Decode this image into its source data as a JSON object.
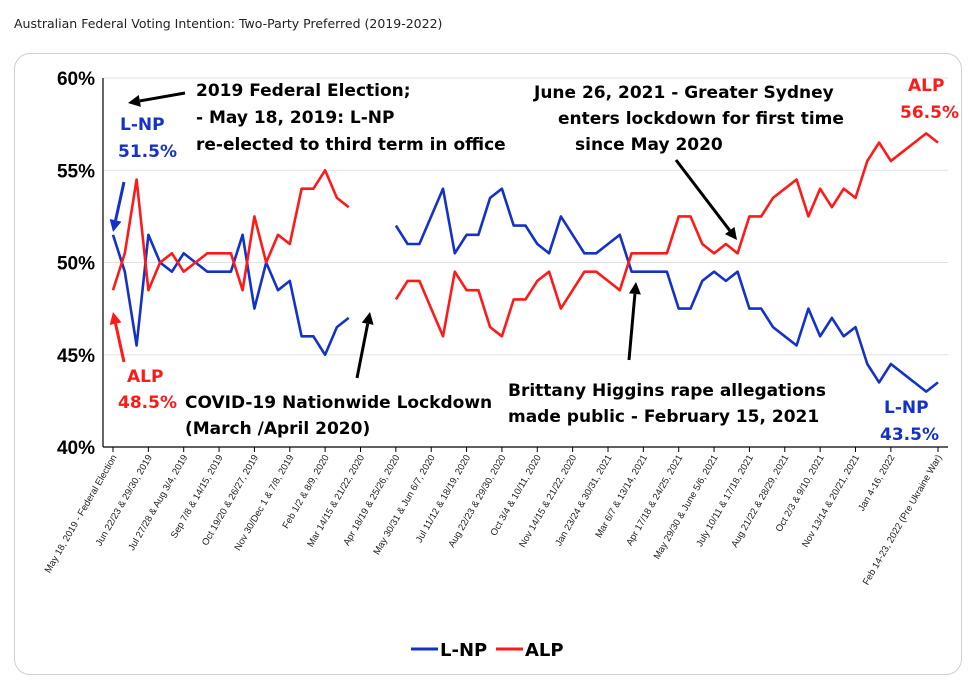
{
  "caption": "Australian Federal Voting Intention: Two-Party Preferred (2019-2022)",
  "colors": {
    "lnp": "#1432c8",
    "alp": "#ff1a1a",
    "arrow": "#000000"
  },
  "chart_data": {
    "type": "line",
    "ylim": [
      40,
      60
    ],
    "y_ticks": [
      40,
      45,
      50,
      55,
      60
    ],
    "y_tick_labels": [
      "40%",
      "45%",
      "50%",
      "55%",
      "60%"
    ],
    "x_tick_labels": [
      "May 18, 2019 - Federal Election",
      "Jun 22/23 & 29/30, 2019",
      "Jul 27/28 & Aug 3/4, 2019",
      "Sep 7/8 & 14/15, 2019",
      "Oct 19/20 & 26/27, 2019",
      "Nov 30/Dec 1 & 7/8, 2019",
      "Feb 1/2 & 8/9, 2020",
      "Mar 14/15 & 21/22, 2020",
      "Apr 18/19 & 25/26, 2020",
      "May 30/31 & Jun 6/7, 2020",
      "Jul 11/12 & 18/19, 2020",
      "Aug 22/23 & 29/30, 2020",
      "Oct 3/4 & 10/11, 2020",
      "Nov 14/15 & 21/22, 2020",
      "Jan 23/24 & 30/31, 2021",
      "Mar 6/7 & 13/14, 2021",
      "Apr 17/18 & 24/25, 2021",
      "May 29/30 & June 5/6, 2021",
      "July 10/11 & 17/18, 2021",
      "Aug 21/22 & 28/29, 2021",
      "Oct 2/3 & 9/10, 2021",
      "Nov 13/14 & 20/21, 2021",
      "Jan 4-16, 2022",
      "Feb 14-23, 2022 (Pre Ukraine War)"
    ],
    "x_tick_index": [
      0,
      3,
      6,
      9,
      12,
      15,
      18,
      21,
      24,
      27,
      30,
      33,
      36,
      39,
      42,
      45,
      48,
      51,
      54,
      57,
      60,
      63,
      66,
      70
    ],
    "x_count": 71,
    "series": [
      {
        "name": "L-NP",
        "values": [
          51.5,
          49.5,
          45.5,
          51.5,
          50.0,
          49.5,
          50.5,
          50.0,
          49.5,
          49.5,
          49.5,
          51.5,
          47.5,
          50.0,
          48.5,
          49.0,
          46.0,
          46.0,
          45.0,
          46.5,
          47.0,
          null,
          null,
          null,
          52.0,
          51.0,
          51.0,
          52.5,
          54.0,
          50.5,
          51.5,
          51.5,
          53.5,
          54.0,
          52.0,
          52.0,
          51.0,
          50.5,
          52.5,
          51.5,
          50.5,
          50.5,
          51.0,
          51.5,
          49.5,
          49.5,
          49.5,
          49.5,
          47.5,
          47.5,
          49.0,
          49.5,
          49.0,
          49.5,
          47.5,
          47.5,
          46.5,
          46.0,
          45.5,
          47.5,
          46.0,
          47.0,
          46.0,
          46.5,
          44.5,
          43.5,
          44.5,
          44.0,
          43.5,
          43.0,
          43.5
        ]
      },
      {
        "name": "ALP",
        "values": [
          48.5,
          50.5,
          54.5,
          48.5,
          50.0,
          50.5,
          49.5,
          50.0,
          50.5,
          50.5,
          50.5,
          48.5,
          52.5,
          50.0,
          51.5,
          51.0,
          54.0,
          54.0,
          55.0,
          53.5,
          53.0,
          null,
          null,
          null,
          48.0,
          49.0,
          49.0,
          47.5,
          46.0,
          49.5,
          48.5,
          48.5,
          46.5,
          46.0,
          48.0,
          48.0,
          49.0,
          49.5,
          47.5,
          48.5,
          49.5,
          49.5,
          49.0,
          48.5,
          50.5,
          50.5,
          50.5,
          50.5,
          52.5,
          52.5,
          51.0,
          50.5,
          51.0,
          50.5,
          52.5,
          52.5,
          53.5,
          54.0,
          54.5,
          52.5,
          54.0,
          53.0,
          54.0,
          53.5,
          55.5,
          56.5,
          55.5,
          56.0,
          56.5,
          57.0,
          56.5
        ]
      }
    ],
    "annotations": [
      [
        "2019 Federal Election;",
        "- May 18, 2019: L-NP",
        "re-elected to third term in office"
      ],
      [
        "June 26, 2021 - Greater Sydney",
        "enters lockdown for first time",
        "since May 2020"
      ],
      [
        "COVID-19 Nationwide Lockdown",
        "(March /April 2020)"
      ],
      [
        "Brittany Higgins rape allegations",
        "made public - February 15, 2021"
      ]
    ],
    "value_labels": {
      "lnp_start": [
        "L-NP",
        "51.5%"
      ],
      "alp_start": [
        "ALP",
        "48.5%"
      ],
      "alp_end": [
        "ALP",
        "56.5%"
      ],
      "lnp_end": [
        "L-NP",
        "43.5%"
      ]
    },
    "legend": [
      "L-NP",
      "ALP"
    ],
    "legend_position": "bottom-center",
    "grid": "horizontal"
  }
}
